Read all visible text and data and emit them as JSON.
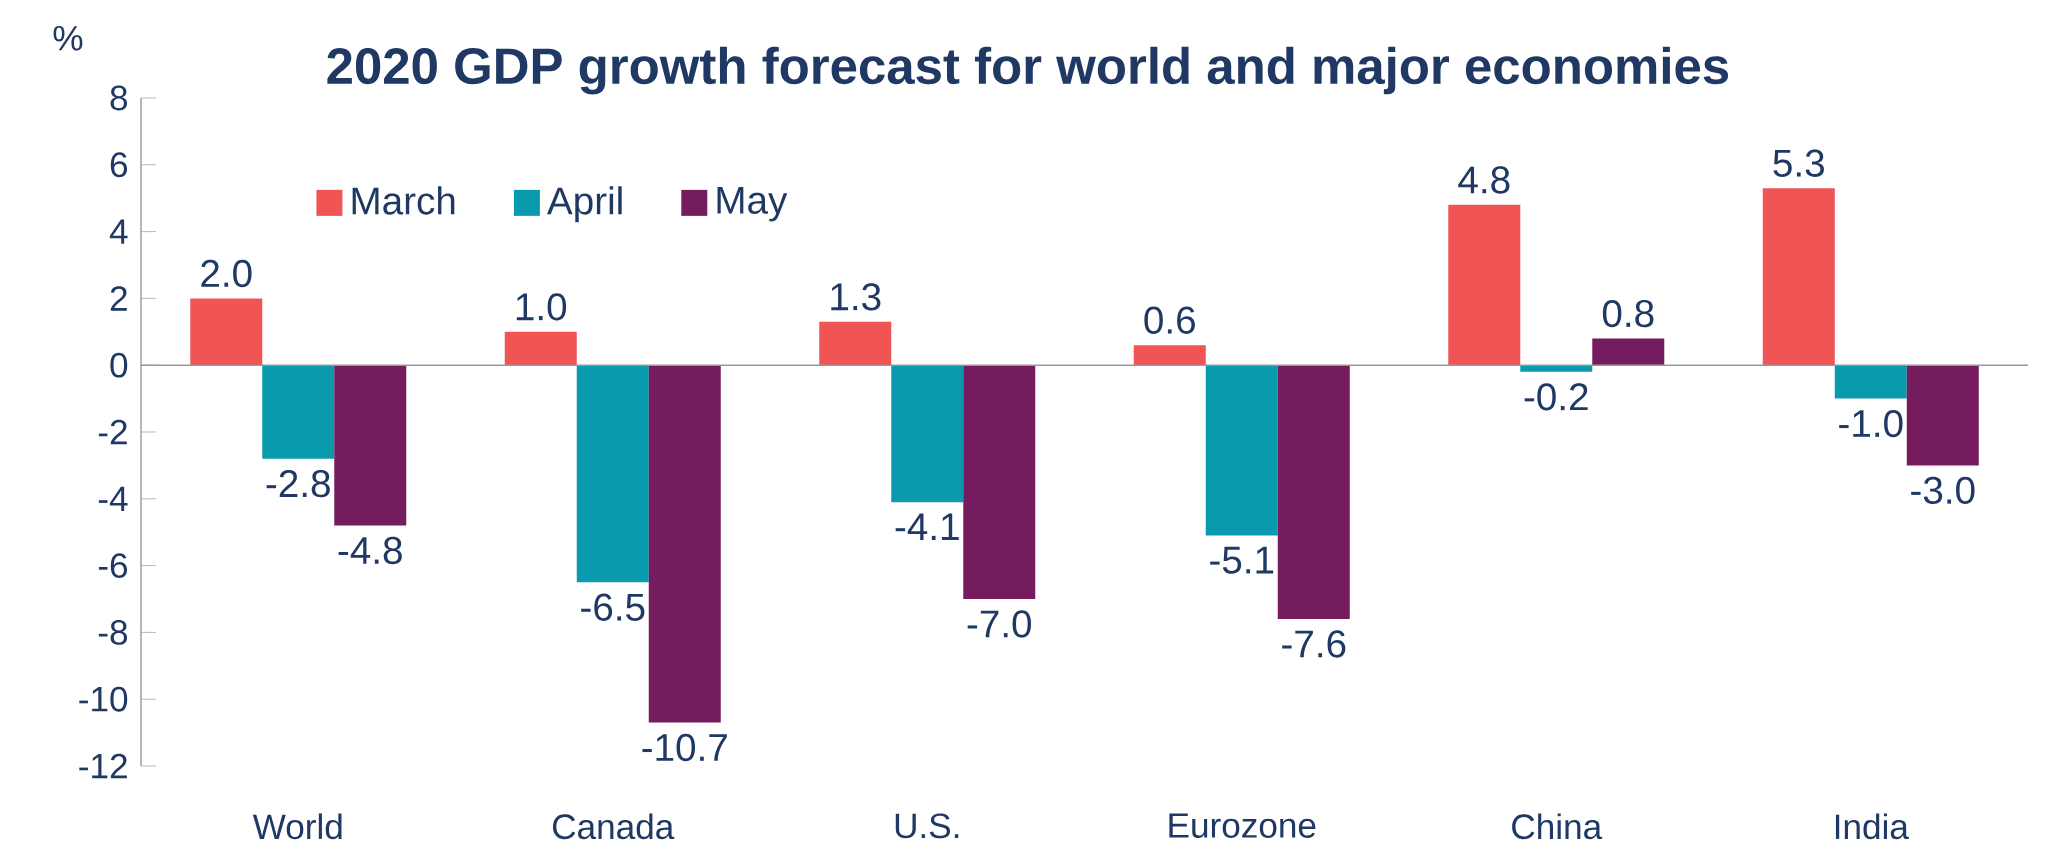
{
  "chart_data": {
    "type": "bar",
    "title": "2020 GDP growth forecast for world and major economies",
    "ylabel": "%",
    "categories": [
      "World",
      "Canada",
      "U.S.",
      "Eurozone",
      "China",
      "India"
    ],
    "series": [
      {
        "name": "March",
        "color": "#f05454",
        "values": [
          2.0,
          1.0,
          1.3,
          0.6,
          4.8,
          5.3
        ],
        "value_labels": [
          "2.0",
          "1.0",
          "1.3",
          "0.6",
          "4.8",
          "5.3"
        ]
      },
      {
        "name": "April",
        "color": "#0a9aae",
        "values": [
          -2.8,
          -6.5,
          -4.1,
          -5.1,
          -0.2,
          -1.0
        ],
        "value_labels": [
          "-2.8",
          "-6.5",
          "-4.1",
          "-5.1",
          "-0.2",
          "-1.0"
        ]
      },
      {
        "name": "May",
        "color": "#741c5e",
        "values": [
          -4.8,
          -10.7,
          -7.0,
          -7.6,
          0.8,
          -3.0
        ],
        "value_labels": [
          "-4.8",
          "-10.7",
          "-7.0",
          "-7.6",
          "0.8",
          "-3.0"
        ]
      }
    ],
    "ylim": [
      -12,
      8
    ],
    "yticks": [
      -12,
      -10,
      -8,
      -6,
      -4,
      -2,
      0,
      2,
      4,
      6,
      8
    ],
    "legend": "top left"
  }
}
